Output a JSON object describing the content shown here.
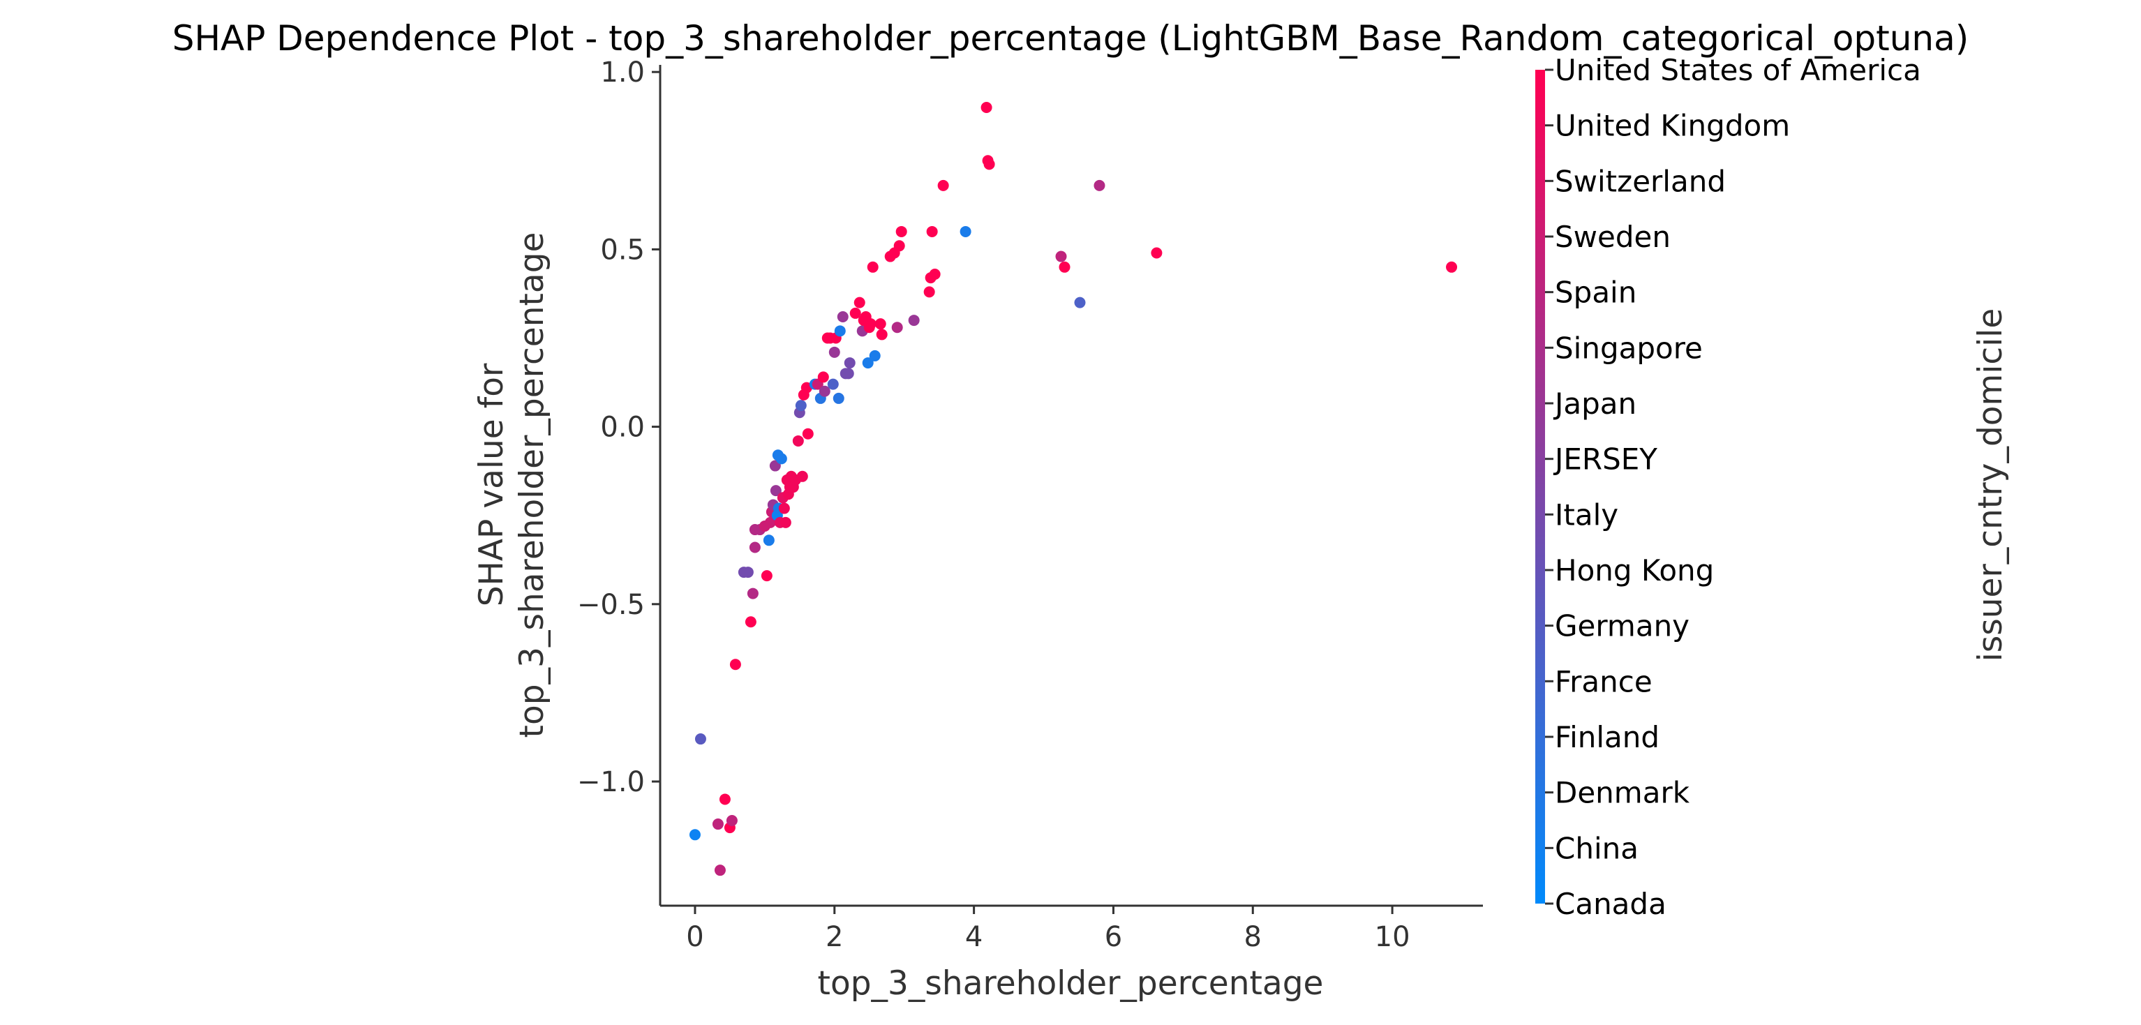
{
  "chart_data": {
    "type": "scatter",
    "title": "SHAP Dependence Plot - top_3_shareholder_percentage (LightGBM_Base_Random_categorical_optuna)",
    "xlabel": "top_3_shareholder_percentage",
    "ylabel_line1": "SHAP value for",
    "ylabel_line2": "top_3_shareholder_percentage",
    "xlim": [
      -0.5,
      11.3
    ],
    "ylim": [
      -1.35,
      1.02
    ],
    "x_ticks": [
      0,
      2,
      4,
      6,
      8,
      10
    ],
    "x_tick_labels": [
      "0",
      "2",
      "4",
      "6",
      "8",
      "10"
    ],
    "y_ticks": [
      1.0,
      0.5,
      0.0,
      -0.5,
      -1.0
    ],
    "y_tick_labels": [
      "1.0",
      "0.5",
      "0.0",
      "−0.5",
      "−1.0"
    ],
    "colorbar": {
      "label": "issuer_cntry_domicile",
      "color_low": "#008afb",
      "color_high": "#ff0052",
      "categories": [
        "Canada",
        "China",
        "Denmark",
        "Finland",
        "France",
        "Germany",
        "Hong Kong",
        "Italy",
        "JERSEY",
        "Japan",
        "Singapore",
        "Spain",
        "Sweden",
        "Switzerland",
        "United Kingdom",
        "United States of America"
      ]
    },
    "points": [
      {
        "x": 0.0,
        "y": -1.15,
        "c": 0.05
      },
      {
        "x": 0.08,
        "y": -0.88,
        "c": 0.35
      },
      {
        "x": 0.33,
        "y": -1.12,
        "c": 0.75
      },
      {
        "x": 0.36,
        "y": -1.25,
        "c": 0.75
      },
      {
        "x": 0.43,
        "y": -1.05,
        "c": 1.0
      },
      {
        "x": 0.5,
        "y": -1.13,
        "c": 1.0
      },
      {
        "x": 0.53,
        "y": -1.11,
        "c": 0.75
      },
      {
        "x": 0.58,
        "y": -0.67,
        "c": 1.0
      },
      {
        "x": 0.7,
        "y": -0.41,
        "c": 0.45
      },
      {
        "x": 0.76,
        "y": -0.41,
        "c": 0.45
      },
      {
        "x": 0.8,
        "y": -0.55,
        "c": 1.0
      },
      {
        "x": 0.83,
        "y": -0.47,
        "c": 0.7
      },
      {
        "x": 0.86,
        "y": -0.34,
        "c": 0.7
      },
      {
        "x": 0.86,
        "y": -0.29,
        "c": 0.7
      },
      {
        "x": 0.93,
        "y": -0.29,
        "c": 0.7
      },
      {
        "x": 1.0,
        "y": -0.28,
        "c": 0.8
      },
      {
        "x": 1.03,
        "y": -0.42,
        "c": 1.0
      },
      {
        "x": 1.06,
        "y": -0.32,
        "c": 0.1
      },
      {
        "x": 1.08,
        "y": -0.27,
        "c": 0.8
      },
      {
        "x": 1.1,
        "y": -0.24,
        "c": 0.8
      },
      {
        "x": 1.12,
        "y": -0.22,
        "c": 0.6
      },
      {
        "x": 1.15,
        "y": -0.11,
        "c": 0.6
      },
      {
        "x": 1.16,
        "y": -0.18,
        "c": 0.6
      },
      {
        "x": 1.18,
        "y": -0.25,
        "c": 0.05
      },
      {
        "x": 1.19,
        "y": -0.08,
        "c": 0.1
      },
      {
        "x": 1.2,
        "y": -0.23,
        "c": 0.1
      },
      {
        "x": 1.22,
        "y": -0.27,
        "c": 0.9
      },
      {
        "x": 1.24,
        "y": -0.09,
        "c": 0.1
      },
      {
        "x": 1.26,
        "y": -0.2,
        "c": 0.9
      },
      {
        "x": 1.28,
        "y": -0.23,
        "c": 0.95
      },
      {
        "x": 1.3,
        "y": -0.27,
        "c": 0.95
      },
      {
        "x": 1.32,
        "y": -0.15,
        "c": 0.95
      },
      {
        "x": 1.34,
        "y": -0.19,
        "c": 0.95
      },
      {
        "x": 1.36,
        "y": -0.17,
        "c": 0.95
      },
      {
        "x": 1.38,
        "y": -0.14,
        "c": 0.95
      },
      {
        "x": 1.41,
        "y": -0.17,
        "c": 0.95
      },
      {
        "x": 1.44,
        "y": -0.15,
        "c": 0.95
      },
      {
        "x": 1.48,
        "y": -0.04,
        "c": 0.95
      },
      {
        "x": 1.5,
        "y": 0.04,
        "c": 0.45
      },
      {
        "x": 1.52,
        "y": 0.06,
        "c": 0.3
      },
      {
        "x": 1.54,
        "y": -0.14,
        "c": 0.95
      },
      {
        "x": 1.56,
        "y": 0.09,
        "c": 1.0
      },
      {
        "x": 1.6,
        "y": 0.11,
        "c": 1.0
      },
      {
        "x": 1.62,
        "y": -0.02,
        "c": 1.0
      },
      {
        "x": 1.72,
        "y": 0.12,
        "c": 0.1
      },
      {
        "x": 1.76,
        "y": 0.12,
        "c": 0.8
      },
      {
        "x": 1.8,
        "y": 0.08,
        "c": 0.15
      },
      {
        "x": 1.84,
        "y": 0.14,
        "c": 1.0
      },
      {
        "x": 1.86,
        "y": 0.1,
        "c": 0.6
      },
      {
        "x": 1.9,
        "y": 0.25,
        "c": 1.0
      },
      {
        "x": 1.94,
        "y": 0.25,
        "c": 1.0
      },
      {
        "x": 1.98,
        "y": 0.12,
        "c": 0.3
      },
      {
        "x": 2.0,
        "y": 0.21,
        "c": 0.6
      },
      {
        "x": 2.02,
        "y": 0.25,
        "c": 1.0
      },
      {
        "x": 2.06,
        "y": 0.08,
        "c": 0.15
      },
      {
        "x": 2.08,
        "y": 0.27,
        "c": 0.1
      },
      {
        "x": 2.12,
        "y": 0.31,
        "c": 0.6
      },
      {
        "x": 2.16,
        "y": 0.15,
        "c": 0.45
      },
      {
        "x": 2.2,
        "y": 0.15,
        "c": 0.45
      },
      {
        "x": 2.22,
        "y": 0.18,
        "c": 0.45
      },
      {
        "x": 2.3,
        "y": 0.32,
        "c": 1.0
      },
      {
        "x": 2.36,
        "y": 0.35,
        "c": 1.0
      },
      {
        "x": 2.4,
        "y": 0.27,
        "c": 0.6
      },
      {
        "x": 2.42,
        "y": 0.3,
        "c": 1.0
      },
      {
        "x": 2.45,
        "y": 0.31,
        "c": 1.0
      },
      {
        "x": 2.48,
        "y": 0.18,
        "c": 0.1
      },
      {
        "x": 2.5,
        "y": 0.28,
        "c": 1.0
      },
      {
        "x": 2.52,
        "y": 0.29,
        "c": 1.0
      },
      {
        "x": 2.55,
        "y": 0.45,
        "c": 1.0
      },
      {
        "x": 2.58,
        "y": 0.2,
        "c": 0.1
      },
      {
        "x": 2.66,
        "y": 0.29,
        "c": 1.0
      },
      {
        "x": 2.68,
        "y": 0.26,
        "c": 1.0
      },
      {
        "x": 2.8,
        "y": 0.48,
        "c": 1.0
      },
      {
        "x": 2.86,
        "y": 0.49,
        "c": 1.0
      },
      {
        "x": 2.9,
        "y": 0.28,
        "c": 0.7
      },
      {
        "x": 2.93,
        "y": 0.51,
        "c": 1.0
      },
      {
        "x": 2.96,
        "y": 0.55,
        "c": 1.0
      },
      {
        "x": 3.14,
        "y": 0.3,
        "c": 0.6
      },
      {
        "x": 3.36,
        "y": 0.38,
        "c": 1.0
      },
      {
        "x": 3.38,
        "y": 0.42,
        "c": 1.0
      },
      {
        "x": 3.4,
        "y": 0.55,
        "c": 1.0
      },
      {
        "x": 3.44,
        "y": 0.43,
        "c": 1.0
      },
      {
        "x": 3.56,
        "y": 0.68,
        "c": 1.0
      },
      {
        "x": 3.88,
        "y": 0.55,
        "c": 0.1
      },
      {
        "x": 4.18,
        "y": 0.9,
        "c": 1.0
      },
      {
        "x": 4.2,
        "y": 0.75,
        "c": 1.0
      },
      {
        "x": 4.22,
        "y": 0.74,
        "c": 1.0
      },
      {
        "x": 5.25,
        "y": 0.48,
        "c": 0.75
      },
      {
        "x": 5.3,
        "y": 0.45,
        "c": 1.0
      },
      {
        "x": 5.52,
        "y": 0.35,
        "c": 0.3
      },
      {
        "x": 5.8,
        "y": 0.68,
        "c": 0.7
      },
      {
        "x": 6.62,
        "y": 0.49,
        "c": 1.0
      },
      {
        "x": 10.85,
        "y": 0.45,
        "c": 1.0
      }
    ]
  }
}
